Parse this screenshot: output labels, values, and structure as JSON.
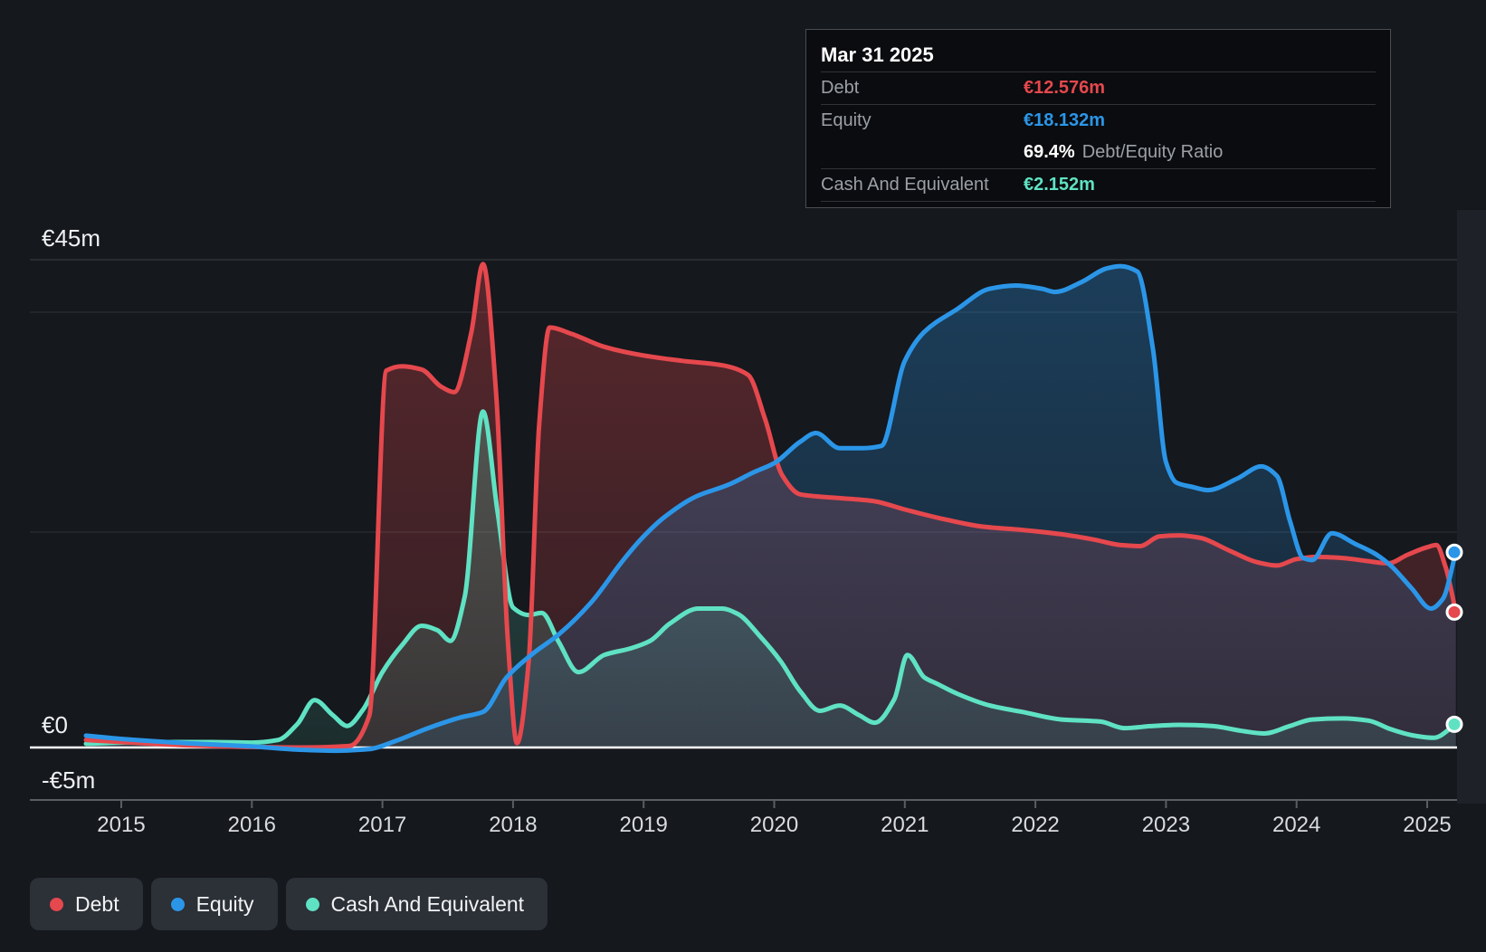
{
  "page": {
    "background": "#15181d"
  },
  "tooltip": {
    "date": "Mar 31 2025",
    "rows": [
      {
        "label": "Debt",
        "value": "€12.576m"
      },
      {
        "label": "Equity",
        "value": "€18.132m"
      },
      {
        "label": "Cash And Equivalent",
        "value": "€2.152m"
      }
    ],
    "ratio": {
      "value": "69.4%",
      "label": "Debt/Equity Ratio"
    }
  },
  "y_axis": {
    "labels": [
      "€45m",
      "€0",
      "-€5m"
    ]
  },
  "x_axis": {
    "years": [
      "2015",
      "2016",
      "2017",
      "2018",
      "2019",
      "2020",
      "2021",
      "2022",
      "2023",
      "2024",
      "2025"
    ]
  },
  "legend": [
    {
      "label": "Debt",
      "color": "#e5484d"
    },
    {
      "label": "Equity",
      "color": "#2b96e8"
    },
    {
      "label": "Cash And Equivalent",
      "color": "#5fe2c3"
    }
  ],
  "chart_data": {
    "type": "area",
    "x_unit": "year_decimal",
    "x_domain": [
      2014.73,
      2025.25
    ],
    "ylim": [
      -5,
      47
    ],
    "y_unit": "EUR millions",
    "gridlines_labeled": [
      45,
      0,
      -5
    ],
    "grid": true,
    "legend_position": "bottom-left",
    "end_marker_date": "Mar 31 2025",
    "end_values": {
      "Debt": 12.576,
      "Equity": 18.132,
      "Cash And Equivalent": 2.152
    },
    "series": [
      {
        "name": "Debt",
        "color": "#e5484d",
        "fill_top": "rgba(229,72,77,0.32)",
        "fill_bottom": "rgba(229,72,77,0.14)",
        "points": [
          [
            2014.73,
            0.7
          ],
          [
            2015.0,
            0.5
          ],
          [
            2015.5,
            0.2
          ],
          [
            2016.0,
            0.05
          ],
          [
            2016.4,
            0.0
          ],
          [
            2016.75,
            0.15
          ],
          [
            2016.9,
            3
          ],
          [
            2017.03,
            35.0
          ],
          [
            2017.15,
            35.4
          ],
          [
            2017.3,
            35.1
          ],
          [
            2017.45,
            33.5
          ],
          [
            2017.55,
            33.0
          ],
          [
            2017.68,
            38.5
          ],
          [
            2017.77,
            44.9
          ],
          [
            2017.87,
            33
          ],
          [
            2017.96,
            10
          ],
          [
            2018.03,
            0.4
          ],
          [
            2018.12,
            8
          ],
          [
            2018.2,
            30
          ],
          [
            2018.28,
            39.0
          ],
          [
            2018.45,
            38.4
          ],
          [
            2018.7,
            37.2
          ],
          [
            2019.0,
            36.4
          ],
          [
            2019.3,
            35.9
          ],
          [
            2019.6,
            35.5
          ],
          [
            2019.8,
            34.6
          ],
          [
            2019.93,
            30.5
          ],
          [
            2020.06,
            25.3
          ],
          [
            2020.2,
            23.5
          ],
          [
            2020.45,
            23.2
          ],
          [
            2020.75,
            22.9
          ],
          [
            2021.0,
            22.1
          ],
          [
            2021.3,
            21.2
          ],
          [
            2021.6,
            20.5
          ],
          [
            2021.9,
            20.2
          ],
          [
            2022.2,
            19.8
          ],
          [
            2022.45,
            19.3
          ],
          [
            2022.65,
            18.8
          ],
          [
            2022.8,
            18.7
          ],
          [
            2022.95,
            19.6
          ],
          [
            2023.1,
            19.7
          ],
          [
            2023.25,
            19.5
          ],
          [
            2023.5,
            18.2
          ],
          [
            2023.7,
            17.2
          ],
          [
            2023.85,
            16.9
          ],
          [
            2024.0,
            17.5
          ],
          [
            2024.15,
            17.7
          ],
          [
            2024.35,
            17.6
          ],
          [
            2024.55,
            17.3
          ],
          [
            2024.7,
            17.1
          ],
          [
            2024.85,
            17.9
          ],
          [
            2025.0,
            18.6
          ],
          [
            2025.07,
            18.8
          ],
          [
            2025.14,
            16.8
          ],
          [
            2025.22,
            12.576
          ]
        ]
      },
      {
        "name": "Equity",
        "color": "#2b96e8",
        "fill_top": "rgba(43,150,232,0.30)",
        "fill_bottom": "rgba(43,150,232,0.12)",
        "points": [
          [
            2014.73,
            1.1
          ],
          [
            2015.0,
            0.8
          ],
          [
            2015.5,
            0.4
          ],
          [
            2016.0,
            0.1
          ],
          [
            2016.35,
            -0.2
          ],
          [
            2016.65,
            -0.3
          ],
          [
            2016.9,
            -0.15
          ],
          [
            2017.1,
            0.6
          ],
          [
            2017.35,
            1.8
          ],
          [
            2017.6,
            2.8
          ],
          [
            2017.77,
            3.3
          ],
          [
            2017.95,
            6.5
          ],
          [
            2018.15,
            8.7
          ],
          [
            2018.35,
            10.5
          ],
          [
            2018.6,
            13.5
          ],
          [
            2018.85,
            17.5
          ],
          [
            2019.0,
            19.6
          ],
          [
            2019.15,
            21.3
          ],
          [
            2019.4,
            23.3
          ],
          [
            2019.65,
            24.4
          ],
          [
            2019.85,
            25.6
          ],
          [
            2020.0,
            26.4
          ],
          [
            2020.2,
            28.4
          ],
          [
            2020.32,
            29.2
          ],
          [
            2020.5,
            27.8
          ],
          [
            2020.68,
            27.8
          ],
          [
            2020.82,
            28.0
          ],
          [
            2021.0,
            35.9
          ],
          [
            2021.15,
            38.6
          ],
          [
            2021.4,
            40.7
          ],
          [
            2021.65,
            42.6
          ],
          [
            2021.85,
            42.9
          ],
          [
            2022.05,
            42.6
          ],
          [
            2022.15,
            42.3
          ],
          [
            2022.35,
            43.2
          ],
          [
            2022.55,
            44.5
          ],
          [
            2022.65,
            44.7
          ],
          [
            2022.78,
            44.2
          ],
          [
            2022.9,
            37
          ],
          [
            2023.0,
            26.5
          ],
          [
            2023.08,
            24.6
          ],
          [
            2023.2,
            24.2
          ],
          [
            2023.32,
            23.9
          ],
          [
            2023.55,
            25.0
          ],
          [
            2023.73,
            26.1
          ],
          [
            2023.85,
            25.2
          ],
          [
            2023.95,
            21
          ],
          [
            2024.05,
            17.6
          ],
          [
            2024.12,
            17.4
          ],
          [
            2024.27,
            19.9
          ],
          [
            2024.45,
            18.9
          ],
          [
            2024.6,
            18.0
          ],
          [
            2024.72,
            16.9
          ],
          [
            2024.88,
            14.8
          ],
          [
            2025.03,
            12.9
          ],
          [
            2025.12,
            13.8
          ],
          [
            2025.22,
            18.132
          ]
        ]
      },
      {
        "name": "Cash And Equivalent",
        "color": "#5fe2c3",
        "fill_top": "rgba(95,226,195,0.26)",
        "fill_bottom": "rgba(95,226,195,0.10)",
        "points": [
          [
            2014.73,
            0.35
          ],
          [
            2015.2,
            0.5
          ],
          [
            2015.7,
            0.5
          ],
          [
            2016.0,
            0.45
          ],
          [
            2016.2,
            0.7
          ],
          [
            2016.35,
            2.2
          ],
          [
            2016.48,
            4.4
          ],
          [
            2016.62,
            3.0
          ],
          [
            2016.73,
            2.0
          ],
          [
            2016.85,
            3.5
          ],
          [
            2017.0,
            7.0
          ],
          [
            2017.15,
            9.5
          ],
          [
            2017.3,
            11.3
          ],
          [
            2017.42,
            10.9
          ],
          [
            2017.52,
            9.9
          ],
          [
            2017.63,
            14
          ],
          [
            2017.77,
            31.2
          ],
          [
            2017.88,
            22
          ],
          [
            2018.0,
            13.0
          ],
          [
            2018.12,
            12.3
          ],
          [
            2018.22,
            12.5
          ],
          [
            2018.35,
            9.8
          ],
          [
            2018.5,
            7.0
          ],
          [
            2018.7,
            8.6
          ],
          [
            2018.9,
            9.2
          ],
          [
            2019.05,
            9.9
          ],
          [
            2019.2,
            11.5
          ],
          [
            2019.42,
            12.9
          ],
          [
            2019.6,
            12.9
          ],
          [
            2019.72,
            12.4
          ],
          [
            2019.9,
            10.2
          ],
          [
            2020.05,
            8.0
          ],
          [
            2020.2,
            5.2
          ],
          [
            2020.35,
            3.4
          ],
          [
            2020.5,
            3.9
          ],
          [
            2020.65,
            3.0
          ],
          [
            2020.77,
            2.3
          ],
          [
            2020.92,
            4.5
          ],
          [
            2021.02,
            8.6
          ],
          [
            2021.15,
            6.5
          ],
          [
            2021.25,
            5.9
          ],
          [
            2021.4,
            5.0
          ],
          [
            2021.65,
            3.9
          ],
          [
            2021.9,
            3.3
          ],
          [
            2022.2,
            2.6
          ],
          [
            2022.5,
            2.4
          ],
          [
            2022.68,
            1.8
          ],
          [
            2022.9,
            2.0
          ],
          [
            2023.1,
            2.1
          ],
          [
            2023.35,
            2.0
          ],
          [
            2023.6,
            1.5
          ],
          [
            2023.75,
            1.3
          ],
          [
            2023.95,
            2.0
          ],
          [
            2024.12,
            2.6
          ],
          [
            2024.35,
            2.7
          ],
          [
            2024.55,
            2.5
          ],
          [
            2024.72,
            1.7
          ],
          [
            2024.9,
            1.1
          ],
          [
            2025.05,
            0.9
          ],
          [
            2025.22,
            2.152
          ]
        ]
      }
    ]
  }
}
